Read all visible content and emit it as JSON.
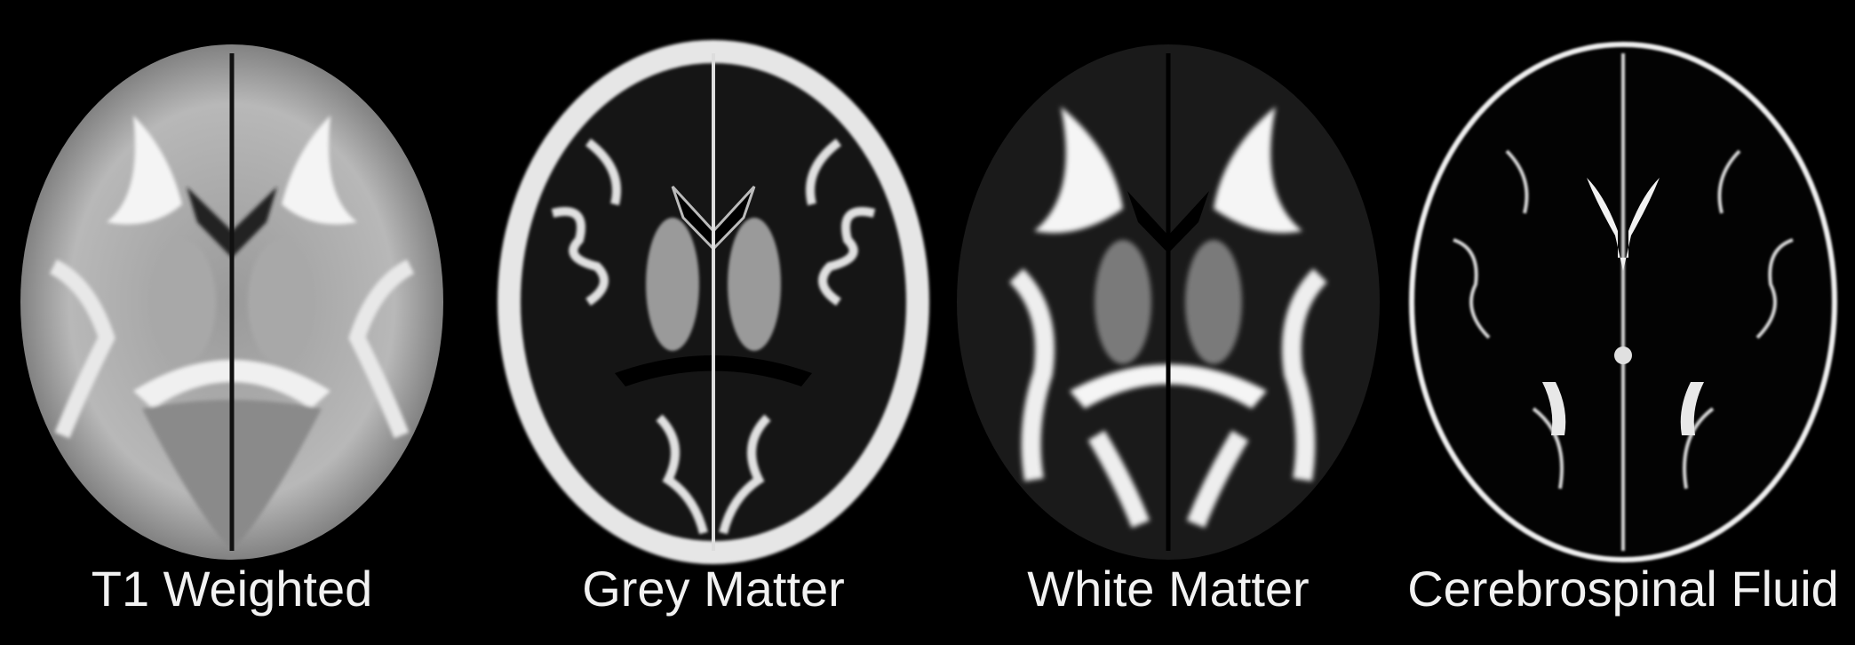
{
  "figure": {
    "panels": [
      {
        "id": "t1",
        "caption": "T1 Weighted",
        "image": "t1-weighted-axial-mri-slice"
      },
      {
        "id": "gm",
        "caption": "Grey Matter",
        "image": "grey-matter-probability-map"
      },
      {
        "id": "wm",
        "caption": "White Matter",
        "image": "white-matter-probability-map"
      },
      {
        "id": "csf",
        "caption": "Cerebrospinal Fluid",
        "image": "cerebrospinal-fluid-probability-map"
      }
    ],
    "background_color": "#000000",
    "caption_color": "#f2f2f2"
  }
}
